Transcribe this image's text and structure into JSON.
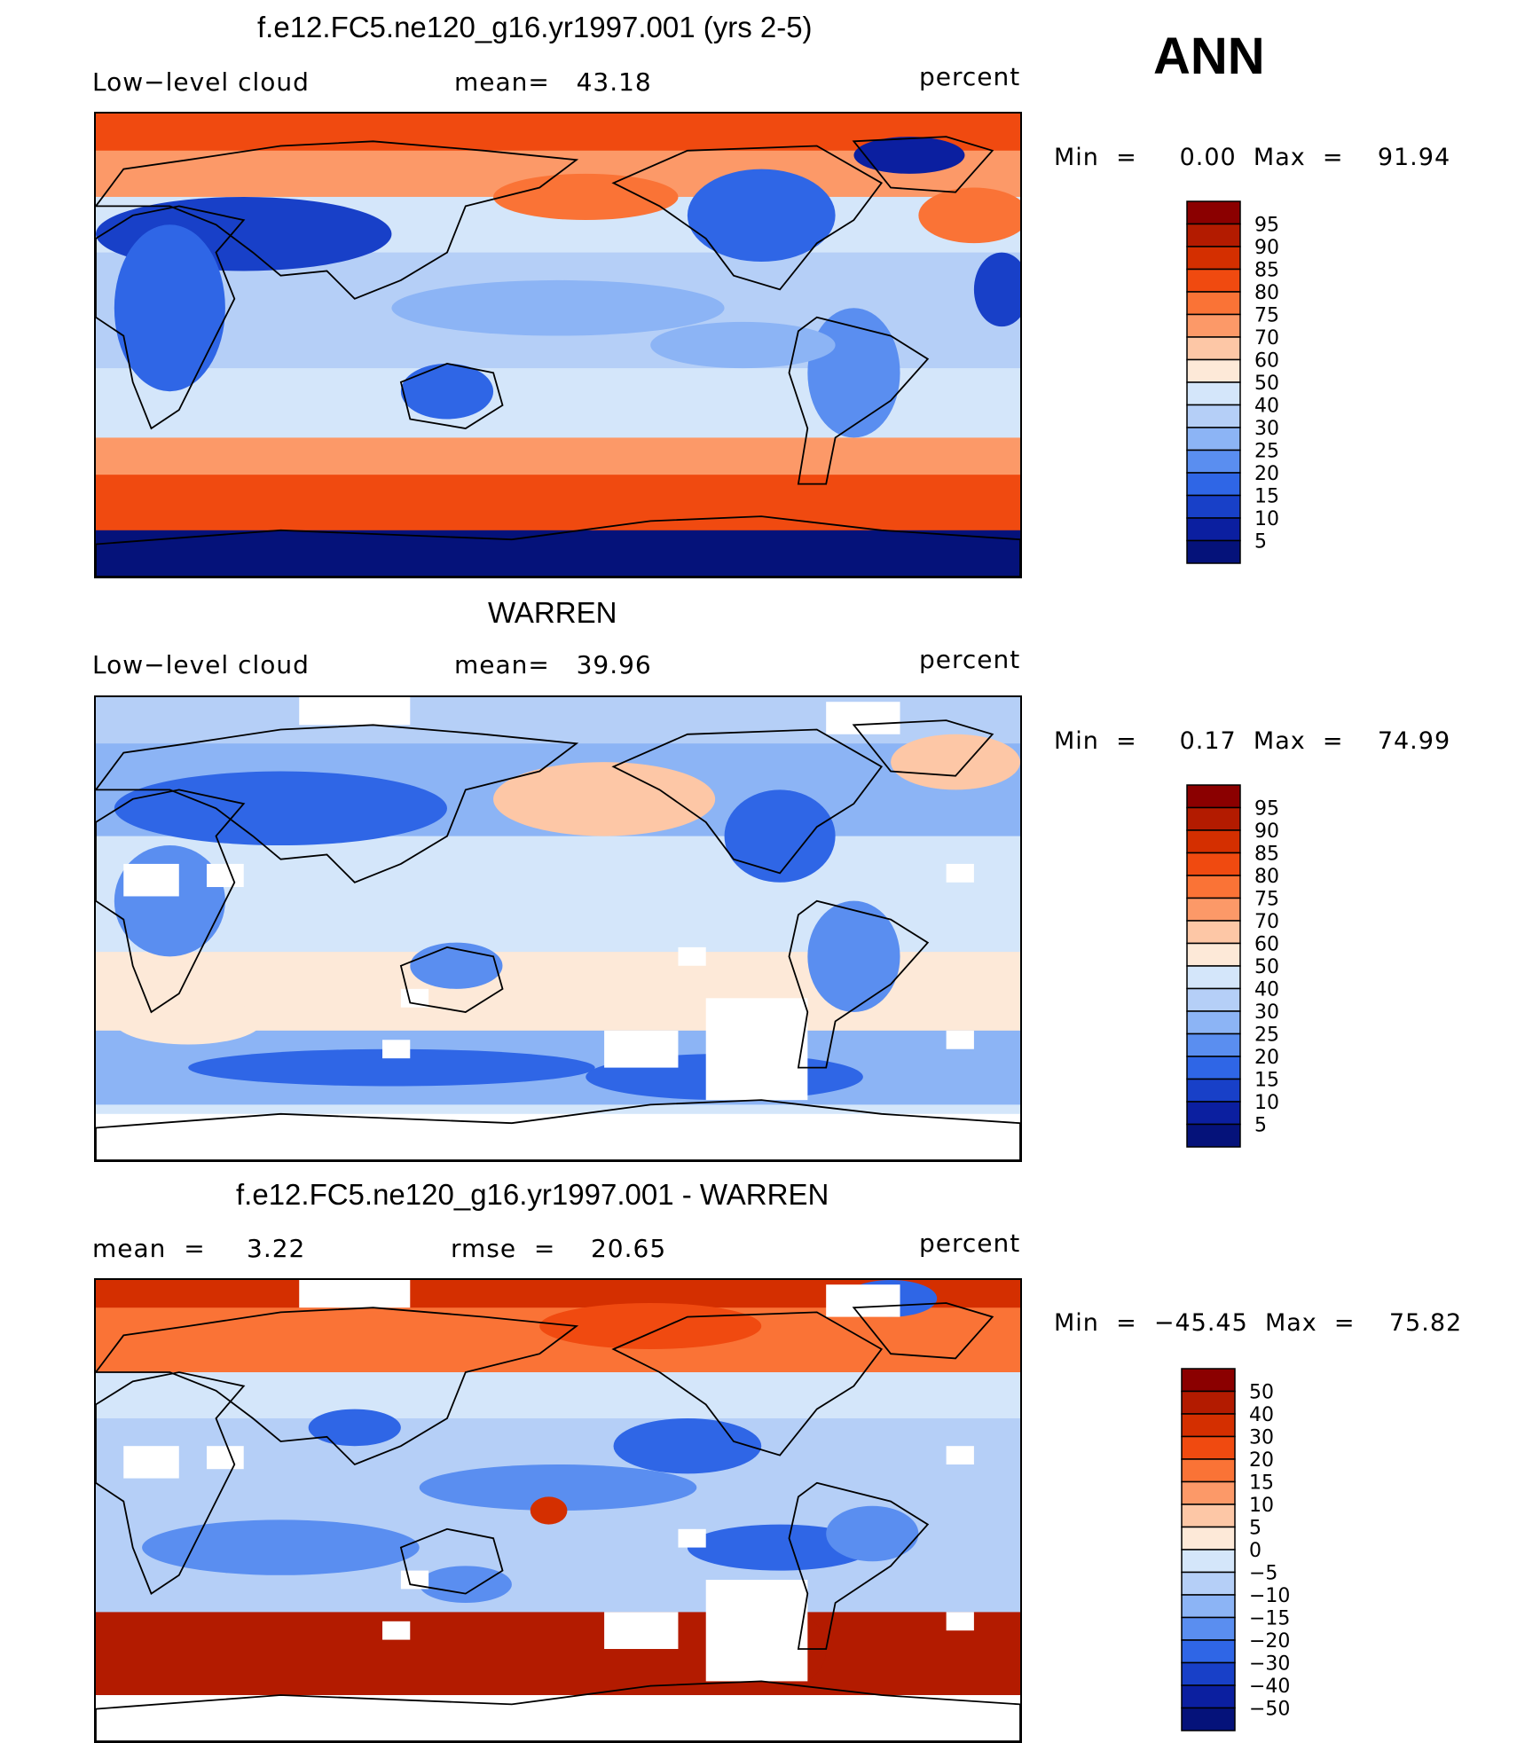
{
  "season": "ANN",
  "panels": [
    {
      "title": "f.e12.FC5.ne120_g16.yr1997.001 (yrs 2-5)",
      "left_label": "Low−level cloud",
      "stat1": "mean=   43.18",
      "stat2": "",
      "units": "percent",
      "minmax": "Min  =     0.00  Max  =    91.94"
    },
    {
      "title": "WARREN",
      "left_label": "Low−level cloud",
      "stat1": "mean=   39.96",
      "stat2": "",
      "units": "percent",
      "minmax": "Min  =     0.17  Max  =    74.99"
    },
    {
      "title": "f.e12.FC5.ne120_g16.yr1997.001 - WARREN",
      "left_label": "mean  =",
      "left_value": "3.22",
      "stat1": "rmse  =    20.65",
      "units": "percent",
      "minmax": "Min  =  −45.45  Max  =    75.82"
    }
  ],
  "chart_data": [
    {
      "type": "heatmap",
      "title": "f.e12.FC5.ne120_g16.yr1997.001 (yrs 2-5)",
      "variable": "Low−level cloud",
      "units": "percent",
      "mean": 43.18,
      "min": 0.0,
      "max": 91.94,
      "colorbar_levels": [
        "95",
        "90",
        "85",
        "80",
        "75",
        "70",
        "60",
        "50",
        "40",
        "30",
        "25",
        "20",
        "15",
        "10",
        "5"
      ],
      "colorbar_colors": [
        "#8b0000",
        "#b31b00",
        "#d42f00",
        "#f04a10",
        "#fa7336",
        "#fc9968",
        "#fdc7a6",
        "#fde9d8",
        "#d4e6fa",
        "#b5cff7",
        "#8cb4f5",
        "#5a8ef0",
        "#2f66e6",
        "#1840c8",
        "#0b1fa0",
        "#05127a"
      ]
    },
    {
      "type": "heatmap",
      "title": "WARREN",
      "variable": "Low−level cloud",
      "units": "percent",
      "mean": 39.96,
      "min": 0.17,
      "max": 74.99,
      "colorbar_levels": [
        "95",
        "90",
        "85",
        "80",
        "75",
        "70",
        "60",
        "50",
        "40",
        "30",
        "25",
        "20",
        "15",
        "10",
        "5"
      ],
      "colorbar_colors": [
        "#8b0000",
        "#b31b00",
        "#d42f00",
        "#f04a10",
        "#fa7336",
        "#fc9968",
        "#fdc7a6",
        "#fde9d8",
        "#d4e6fa",
        "#b5cff7",
        "#8cb4f5",
        "#5a8ef0",
        "#2f66e6",
        "#1840c8",
        "#0b1fa0",
        "#05127a"
      ]
    },
    {
      "type": "heatmap",
      "title": "f.e12.FC5.ne120_g16.yr1997.001 - WARREN",
      "units": "percent",
      "mean": 3.22,
      "rmse": 20.65,
      "min": -45.45,
      "max": 75.82,
      "colorbar_levels": [
        "50",
        "40",
        "30",
        "20",
        "15",
        "10",
        "5",
        "0",
        "−5",
        "−10",
        "−15",
        "−20",
        "−30",
        "−40",
        "−50"
      ],
      "colorbar_colors": [
        "#8b0000",
        "#b31b00",
        "#d42f00",
        "#f04a10",
        "#fa7336",
        "#fc9968",
        "#fdc7a6",
        "#fde9d8",
        "#d4e6fa",
        "#b5cff7",
        "#8cb4f5",
        "#5a8ef0",
        "#2f66e6",
        "#1840c8",
        "#0b1fa0",
        "#05127a"
      ]
    }
  ]
}
